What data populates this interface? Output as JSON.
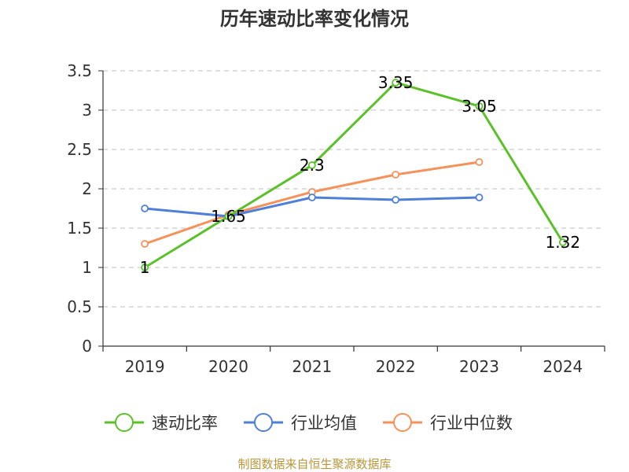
{
  "chart_data": {
    "type": "line",
    "title": "历年速动比率变化情况",
    "categories": [
      "2019",
      "2020",
      "2021",
      "2022",
      "2023",
      "2024"
    ],
    "ylim": [
      0,
      3.5
    ],
    "yticks": [
      "0",
      "0.5",
      "1",
      "1.5",
      "2",
      "2.5",
      "3",
      "3.5"
    ],
    "grid": true,
    "legend_position": "bottom",
    "series": [
      {
        "name": "速动比率",
        "color": "#5cc02a",
        "values": [
          1,
          1.65,
          2.3,
          3.35,
          3.05,
          1.32
        ],
        "labels": [
          "1",
          "1.65",
          "2.3",
          "3.35",
          "3.05",
          "1.32"
        ],
        "show_labels": true
      },
      {
        "name": "行业均值",
        "color": "#4f7fd9",
        "values": [
          1.75,
          1.65,
          1.89,
          1.86,
          1.89,
          null
        ],
        "show_labels": false
      },
      {
        "name": "行业中位数",
        "color": "#f5925c",
        "values": [
          1.3,
          1.67,
          1.96,
          2.18,
          2.34,
          null
        ],
        "show_labels": false
      }
    ],
    "source": "制图数据来自恒生聚源数据库"
  }
}
